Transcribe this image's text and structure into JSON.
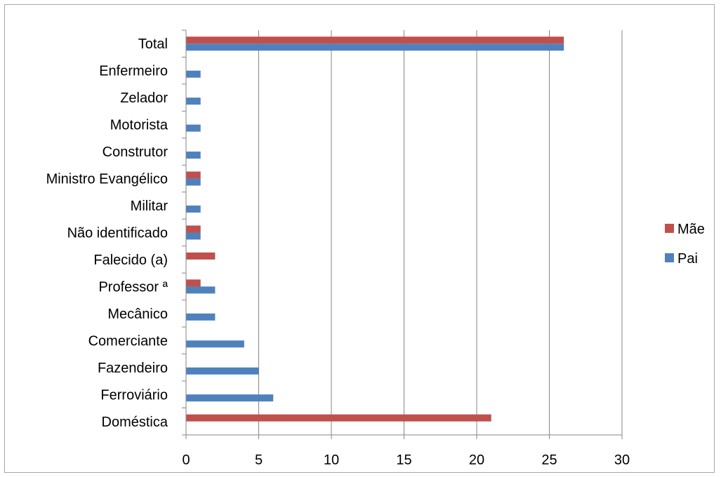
{
  "chart_data": {
    "type": "bar",
    "orientation": "horizontal",
    "categories": [
      "Doméstica",
      "Ferroviário",
      "Fazendeiro",
      "Comerciante",
      "Mecânico",
      "Professor ª",
      "Falecido (a)",
      "Não identificado",
      "Militar",
      "Ministro Evangélico",
      "Construtor",
      "Motorista",
      "Zelador",
      "Enfermeiro",
      "Total"
    ],
    "series": [
      {
        "name": "Pai",
        "color": "#4f81bd",
        "values": [
          0,
          6,
          5,
          4,
          2,
          2,
          0,
          1,
          1,
          1,
          1,
          1,
          1,
          1,
          26
        ]
      },
      {
        "name": "Mãe",
        "color": "#c0504d",
        "values": [
          21,
          0,
          0,
          0,
          0,
          1,
          2,
          1,
          0,
          1,
          0,
          0,
          0,
          0,
          26
        ]
      }
    ],
    "xlim": [
      0,
      30
    ],
    "xticks": [
      0,
      5,
      10,
      15,
      20,
      25,
      30
    ],
    "grid": true,
    "legend_position": "right",
    "legend_order": [
      "Mãe",
      "Pai"
    ]
  }
}
